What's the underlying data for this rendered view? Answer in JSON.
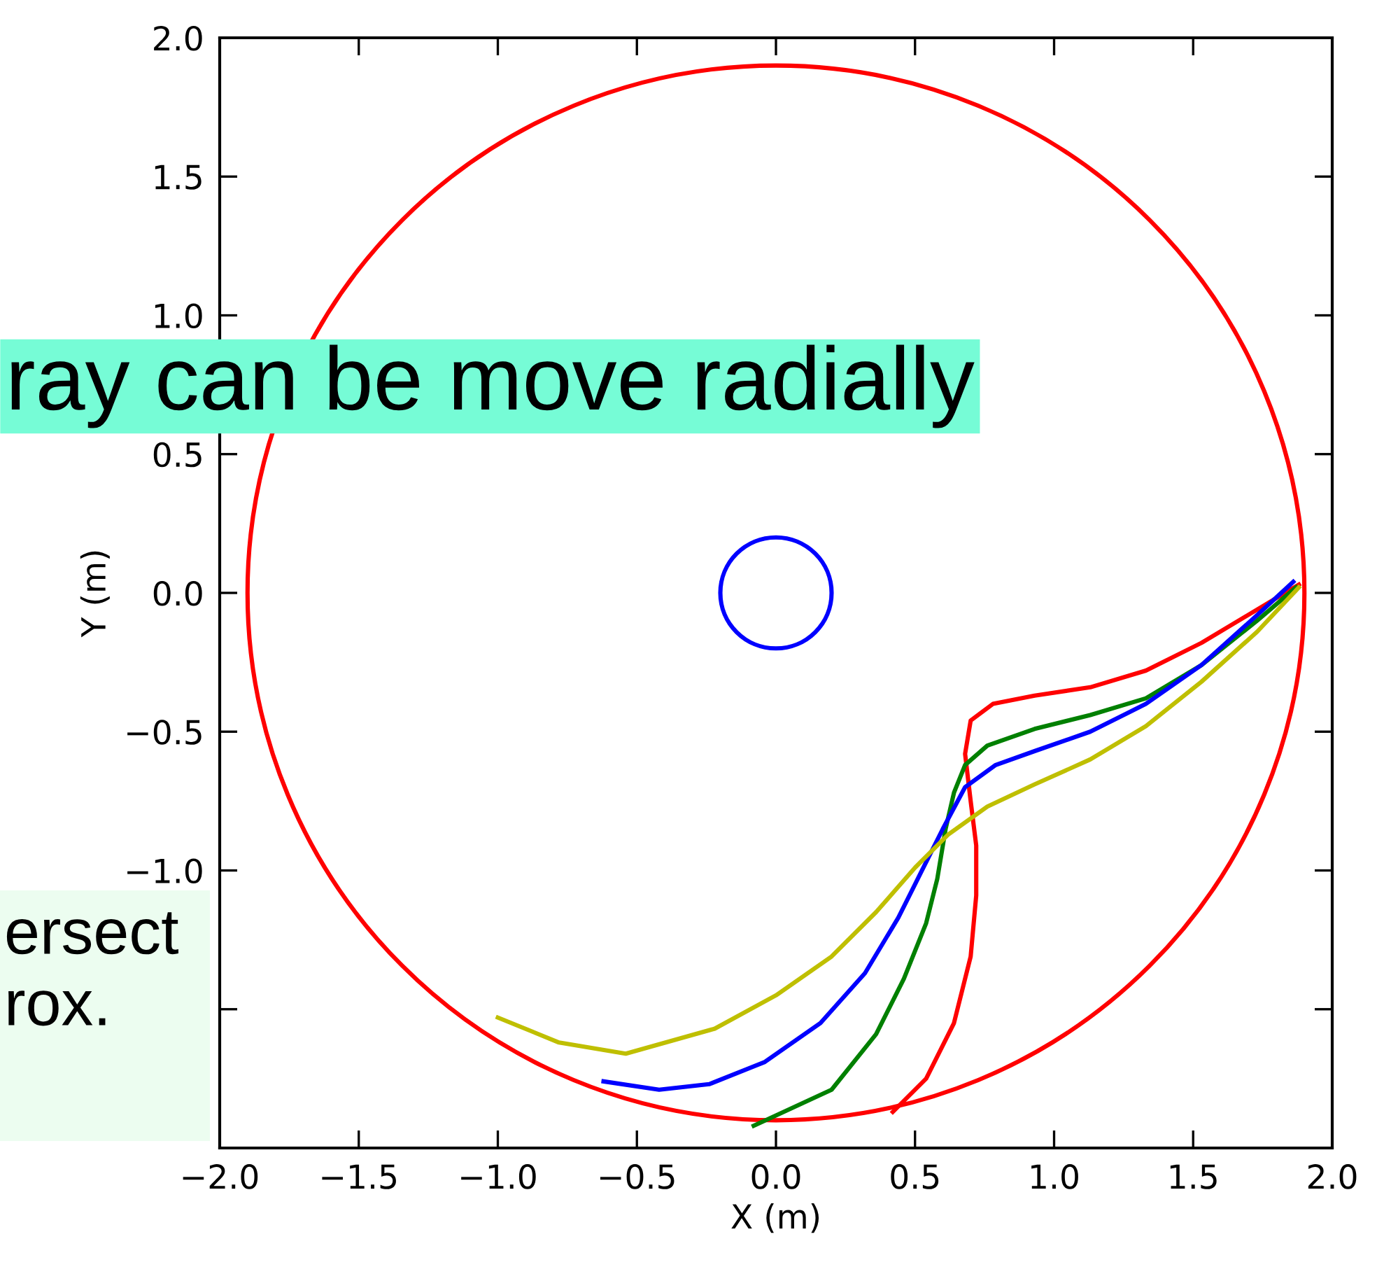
{
  "chart_data": {
    "type": "line",
    "xlabel": "X (m)",
    "ylabel": "Y (m)",
    "xlim": [
      -2.0,
      2.0
    ],
    "ylim": [
      -2.0,
      2.0
    ],
    "xticks": [
      {
        "value": -2.0,
        "label": "−2.0"
      },
      {
        "value": -1.5,
        "label": "−1.5"
      },
      {
        "value": -1.0,
        "label": "−1.0"
      },
      {
        "value": -0.5,
        "label": "−0.5"
      },
      {
        "value": 0.0,
        "label": "0.0"
      },
      {
        "value": 0.5,
        "label": "0.5"
      },
      {
        "value": 1.0,
        "label": "1.0"
      },
      {
        "value": 1.5,
        "label": "1.5"
      },
      {
        "value": 2.0,
        "label": "2.0"
      }
    ],
    "yticks": [
      {
        "value": -2.0,
        "label": null
      },
      {
        "value": -1.5,
        "label": null
      },
      {
        "value": -1.0,
        "label": "−1.0"
      },
      {
        "value": -0.5,
        "label": "−0.5"
      },
      {
        "value": 0.0,
        "label": "0.0"
      },
      {
        "value": 0.5,
        "label": "0.5"
      },
      {
        "value": 1.0,
        "label": "1.0"
      },
      {
        "value": 1.5,
        "label": "1.5"
      },
      {
        "value": 2.0,
        "label": "2.0"
      }
    ],
    "series": [
      {
        "color": "#ff0000",
        "x": [
          1.88,
          1.73,
          1.53,
          1.33,
          1.13,
          0.93,
          0.78,
          0.7,
          0.68,
          0.7,
          0.72,
          0.72,
          0.7,
          0.64,
          0.54,
          0.42
        ],
        "values": [
          0.03,
          -0.06,
          -0.18,
          -0.28,
          -0.34,
          -0.37,
          -0.4,
          -0.46,
          -0.58,
          -0.75,
          -0.91,
          -1.09,
          -1.31,
          -1.55,
          -1.75,
          -1.87
        ]
      },
      {
        "color": "#008000",
        "x": [
          1.87,
          1.73,
          1.53,
          1.33,
          1.13,
          0.93,
          0.76,
          0.68,
          0.64,
          0.61,
          0.58,
          0.54,
          0.46,
          0.36,
          0.2,
          -0.08
        ],
        "values": [
          0.02,
          -0.1,
          -0.26,
          -0.38,
          -0.44,
          -0.49,
          -0.55,
          -0.62,
          -0.72,
          -0.85,
          -1.03,
          -1.19,
          -1.39,
          -1.59,
          -1.79,
          -1.92
        ]
      },
      {
        "color": "#0000ff",
        "x": [
          1.86,
          1.73,
          1.53,
          1.33,
          1.13,
          0.93,
          0.79,
          0.68,
          0.6,
          0.52,
          0.44,
          0.32,
          0.16,
          -0.04,
          -0.24,
          -0.42,
          -0.62
        ],
        "values": [
          0.04,
          -0.08,
          -0.26,
          -0.4,
          -0.5,
          -0.57,
          -0.62,
          -0.7,
          -0.85,
          -1.01,
          -1.17,
          -1.37,
          -1.55,
          -1.69,
          -1.77,
          -1.79,
          -1.76
        ]
      },
      {
        "color": "#bfbf00",
        "x": [
          1.88,
          1.73,
          1.53,
          1.33,
          1.13,
          0.93,
          0.76,
          0.62,
          0.5,
          0.36,
          0.2,
          0.0,
          -0.22,
          -0.54,
          -0.78,
          -1.0
        ],
        "values": [
          0.02,
          -0.14,
          -0.32,
          -0.48,
          -0.6,
          -0.69,
          -0.77,
          -0.87,
          -0.99,
          -1.15,
          -1.31,
          -1.45,
          -1.57,
          -1.66,
          -1.62,
          -1.53
        ]
      }
    ],
    "annotations": [
      "ray can be move radially",
      "ersect\nrox."
    ]
  }
}
